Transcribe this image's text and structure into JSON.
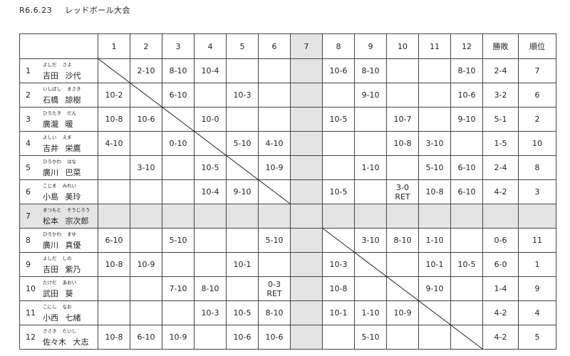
{
  "header": {
    "date": "R6.6.23",
    "title": "レッドボール大会"
  },
  "columns": [
    "1",
    "2",
    "3",
    "4",
    "5",
    "6",
    "7",
    "8",
    "9",
    "10",
    "11",
    "12",
    "勝敗",
    "順位"
  ],
  "rows": [
    {
      "no": "1",
      "kana": "よしだ さよ",
      "name": "吉田 沙代",
      "cells": [
        "",
        "2-10",
        "8-10",
        "10-4",
        "",
        "",
        "",
        "10-6",
        "8-10",
        "",
        "",
        "8-10"
      ],
      "record": "2-4",
      "rank": "7"
    },
    {
      "no": "2",
      "kana": "いしばし まさき",
      "name": "石橋 諒樹",
      "cells": [
        "10-2",
        "",
        "6-10",
        "",
        "10-3",
        "",
        "",
        "",
        "9-10",
        "",
        "",
        "10-6"
      ],
      "record": "3-2",
      "rank": "6"
    },
    {
      "no": "3",
      "kana": "ひろたき だん",
      "name": "廣瀧 暖",
      "cells": [
        "10-8",
        "10-6",
        "",
        "10-0",
        "",
        "",
        "",
        "10-5",
        "",
        "10-7",
        "",
        "9-10"
      ],
      "record": "5-1",
      "rank": "2"
    },
    {
      "no": "4",
      "kana": "よしい えま",
      "name": "吉井 栄鷹",
      "cells": [
        "4-10",
        "",
        "0-10",
        "",
        "5-10",
        "4-10",
        "",
        "",
        "",
        "10-8",
        "3-10",
        ""
      ],
      "record": "1-5",
      "rank": "10"
    },
    {
      "no": "5",
      "kana": "ひろかわ はな",
      "name": "廣川 巴菜",
      "cells": [
        "",
        "3-10",
        "",
        "10-5",
        "",
        "10-9",
        "",
        "",
        "1-10",
        "",
        "5-10",
        "6-10"
      ],
      "record": "2-4",
      "rank": "8"
    },
    {
      "no": "6",
      "kana": "こじま みれい",
      "name": "小島 美玲",
      "cells": [
        "",
        "",
        "",
        "10-4",
        "9-10",
        "",
        "",
        "10-5",
        "",
        "3-0\nRET",
        "10-8",
        "6-10"
      ],
      "record": "4-2",
      "rank": "3"
    },
    {
      "no": "7",
      "kana": "まつもと そうじろう",
      "name": "松本 宗次郎",
      "cells": [
        "",
        "",
        "",
        "",
        "",
        "",
        "",
        "",
        "",
        "",
        "",
        ""
      ],
      "record": "",
      "rank": "",
      "absent": true
    },
    {
      "no": "8",
      "kana": "ひろかわ まゆ",
      "name": "廣川 真優",
      "cells": [
        "6-10",
        "",
        "5-10",
        "",
        "",
        "5-10",
        "",
        "",
        "3-10",
        "8-10",
        "1-10",
        ""
      ],
      "record": "0-6",
      "rank": "11"
    },
    {
      "no": "9",
      "kana": "よしだ しの",
      "name": "吉田 紫乃",
      "cells": [
        "10-8",
        "10-9",
        "",
        "",
        "10-1",
        "",
        "",
        "10-3",
        "",
        "",
        "10-1",
        "10-5"
      ],
      "record": "6-0",
      "rank": "1"
    },
    {
      "no": "10",
      "kana": "たけだ あおい",
      "name": "武田 葵",
      "cells": [
        "",
        "",
        "7-10",
        "8-10",
        "",
        "0-3\nRET",
        "",
        "10-8",
        "",
        "",
        "9-10",
        ""
      ],
      "record": "1-4",
      "rank": "9"
    },
    {
      "no": "11",
      "kana": "こにし なお",
      "name": "小西 七緒",
      "cells": [
        "",
        "",
        "",
        "10-3",
        "10-5",
        "8-10",
        "",
        "10-1",
        "1-10",
        "10-9",
        "",
        ""
      ],
      "record": "4-2",
      "rank": "4"
    },
    {
      "no": "12",
      "kana": "ささき たいし",
      "name": "佐々木 大志",
      "cells": [
        "10-8",
        "6-10",
        "10-9",
        "",
        "10-6",
        "10-6",
        "",
        "",
        "5-10",
        "",
        "",
        ""
      ],
      "record": "4-2",
      "rank": "5"
    }
  ],
  "colors": {
    "absent_fill": "#e4e4e4",
    "border": "#444444"
  }
}
